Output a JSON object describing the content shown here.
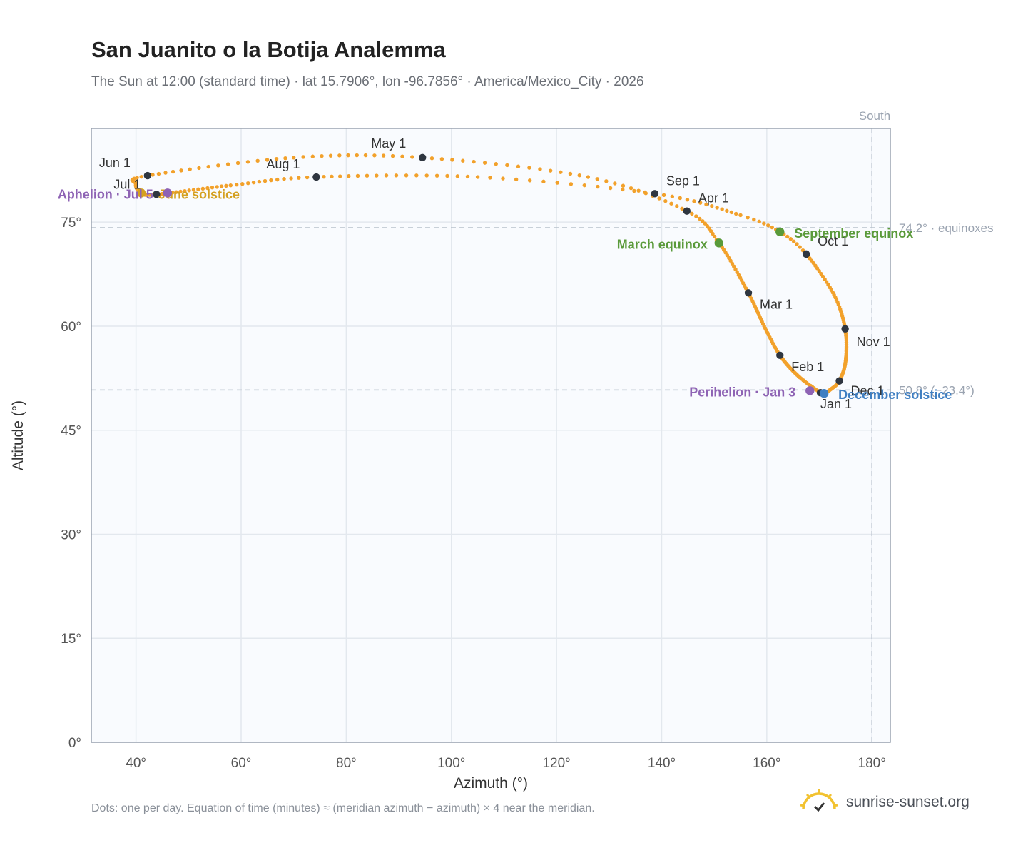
{
  "chart_data": {
    "type": "scatter",
    "title": "San Juanito o la Botija Analemma",
    "subtitle": "The Sun at 12:00 (standard time) · lat 15.7906°, lon -96.7856° · America/Mexico_City · 2026",
    "xlabel": "Azimuth (°)",
    "ylabel": "Altitude (°)",
    "xlim": [
      31.5,
      183.5
    ],
    "ylim": [
      0,
      88.5
    ],
    "xticks": [
      40,
      60,
      80,
      100,
      120,
      140,
      160,
      180
    ],
    "yticks": [
      0,
      15,
      30,
      45,
      60,
      75
    ],
    "x_tick_labels": [
      "40°",
      "60°",
      "80°",
      "100°",
      "120°",
      "140°",
      "160°",
      "180°"
    ],
    "y_tick_labels": [
      "0°",
      "15°",
      "30°",
      "45°",
      "60°",
      "75°"
    ],
    "grid": true,
    "south_line": {
      "azimuth": 180,
      "label": "South"
    },
    "reference_lines": [
      {
        "altitude": 74.2,
        "label": "74.2° · equinoxes"
      },
      {
        "altitude": 50.8,
        "label": "50.8° (−23.4°)"
      }
    ],
    "series_color": "#f2a12b",
    "path_knots": [
      {
        "day": 1,
        "az": 170.2,
        "alt": 50.4
      },
      {
        "day": 15,
        "az": 166.0,
        "alt": 52.8
      },
      {
        "day": 32,
        "az": 162.5,
        "alt": 55.8
      },
      {
        "day": 46,
        "az": 159.5,
        "alt": 60.0
      },
      {
        "day": 60,
        "az": 156.5,
        "alt": 64.8
      },
      {
        "day": 79,
        "az": 150.9,
        "alt": 72.0
      },
      {
        "day": 91,
        "az": 144.8,
        "alt": 76.6
      },
      {
        "day": 105,
        "az": 126.0,
        "alt": 81.5
      },
      {
        "day": 121,
        "az": 94.5,
        "alt": 84.3
      },
      {
        "day": 135,
        "az": 70.0,
        "alt": 84.3
      },
      {
        "day": 152,
        "az": 42.2,
        "alt": 81.7
      },
      {
        "day": 163,
        "az": 40.0,
        "alt": 80.5
      },
      {
        "day": 172,
        "az": 41.0,
        "alt": 79.2
      },
      {
        "day": 182,
        "az": 43.9,
        "alt": 79.0
      },
      {
        "day": 200,
        "az": 58.0,
        "alt": 80.3
      },
      {
        "day": 213,
        "az": 74.3,
        "alt": 81.5
      },
      {
        "day": 230,
        "az": 105.0,
        "alt": 81.5
      },
      {
        "day": 244,
        "az": 138.7,
        "alt": 79.1
      },
      {
        "day": 258,
        "az": 155.0,
        "alt": 76.0
      },
      {
        "day": 266,
        "az": 162.5,
        "alt": 73.6
      },
      {
        "day": 274,
        "az": 167.5,
        "alt": 70.4
      },
      {
        "day": 290,
        "az": 172.8,
        "alt": 64.5
      },
      {
        "day": 305,
        "az": 174.9,
        "alt": 59.6
      },
      {
        "day": 320,
        "az": 175.0,
        "alt": 55.0
      },
      {
        "day": 335,
        "az": 173.8,
        "alt": 52.1
      },
      {
        "day": 345,
        "az": 172.0,
        "alt": 50.8
      },
      {
        "day": 355,
        "az": 170.9,
        "alt": 50.3
      },
      {
        "day": 365,
        "az": 170.2,
        "alt": 50.4
      }
    ],
    "month_markers": [
      {
        "label": "Jan 1",
        "az": 170.2,
        "alt": 50.4
      },
      {
        "label": "Feb 1",
        "az": 162.5,
        "alt": 55.8
      },
      {
        "label": "Mar 1",
        "az": 156.5,
        "alt": 64.8
      },
      {
        "label": "Apr 1",
        "az": 144.8,
        "alt": 76.6
      },
      {
        "label": "May 1",
        "az": 94.5,
        "alt": 84.3
      },
      {
        "label": "Jun 1",
        "az": 42.2,
        "alt": 81.7
      },
      {
        "label": "Jul 1",
        "az": 43.9,
        "alt": 79.0
      },
      {
        "label": "Aug 1",
        "az": 74.3,
        "alt": 81.5
      },
      {
        "label": "Sep 1",
        "az": 138.7,
        "alt": 79.1
      },
      {
        "label": "Oct 1",
        "az": 167.5,
        "alt": 70.4
      },
      {
        "label": "Nov 1",
        "az": 174.9,
        "alt": 59.6
      },
      {
        "label": "Dec 1",
        "az": 173.8,
        "alt": 52.1
      }
    ],
    "events": [
      {
        "label": "March equinox",
        "az": 150.9,
        "alt": 72.0,
        "color": "#5a9a3a"
      },
      {
        "label": "September equinox",
        "az": 162.5,
        "alt": 73.6,
        "color": "#5a9a3a"
      },
      {
        "label": "June solstice",
        "az": 41.0,
        "alt": 79.2,
        "color": "#d4a020"
      },
      {
        "label": "December solstice",
        "az": 170.9,
        "alt": 50.3,
        "color": "#3f7fc2"
      },
      {
        "label": "Aphelion · Jul 5",
        "az": 46.0,
        "alt": 79.2,
        "color": "#8e63b4"
      },
      {
        "label": "Perihelion · Jan 3",
        "az": 168.2,
        "alt": 50.7,
        "color": "#8e63b4"
      }
    ]
  },
  "footnote": "Dots: one per day. Equation of time (minutes) ≈ (meridian azimuth − azimuth) × 4 near the meridian.",
  "brand": {
    "text": "sunrise-sunset.org",
    "icon": "sun-logo-icon"
  }
}
